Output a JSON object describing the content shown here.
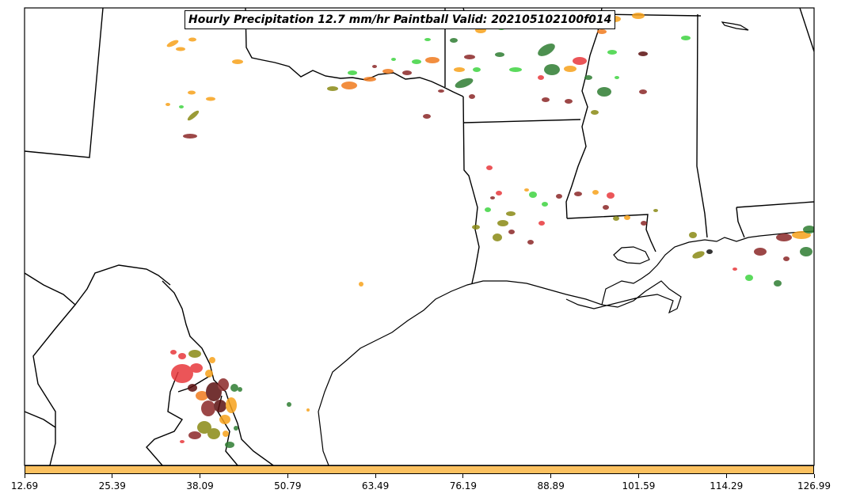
{
  "title": "Hourly Precipitation 12.7 mm/hr Paintball Valid: 202105102100f014",
  "colorbar": {
    "color": "#fbc160",
    "ticks": [
      "12.69",
      "25.39",
      "38.09",
      "50.79",
      "63.49",
      "76.19",
      "88.89",
      "101.59",
      "114.29",
      "126.99"
    ]
  },
  "palette": {
    "red": "#e8383c",
    "orange": "#f7a21b",
    "dark_orange": "#f07b1e",
    "green": "#3fd441",
    "dark_green": "#2f7d32",
    "olive": "#8a8a15",
    "maroon": "#8b2727",
    "brown": "#5b1010",
    "black": "#111111"
  }
}
